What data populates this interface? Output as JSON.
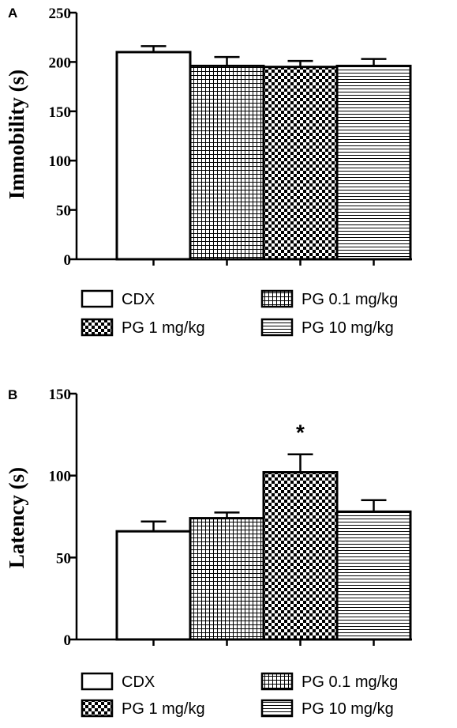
{
  "chart_data": [
    {
      "panel": "A",
      "type": "bar",
      "categories": [
        "CDX",
        "PG 0.1 mg/kg",
        "PG 1 mg/kg",
        "PG 10 mg/kg"
      ],
      "patterns": [
        "none",
        "grid",
        "checker",
        "hlines"
      ],
      "values": [
        210,
        196,
        195,
        196
      ],
      "errors": [
        6,
        9,
        6,
        7
      ],
      "significance": [
        "",
        "",
        "",
        ""
      ],
      "ylabel": "Immobility (s)",
      "ylim": [
        0,
        250
      ],
      "yticks": [
        0,
        50,
        100,
        150,
        200,
        250
      ],
      "legend": [
        "CDX",
        "PG 0.1 mg/kg",
        "PG 1 mg/kg",
        "PG 10 mg/kg"
      ],
      "legend_layout": "two-column, below the plot",
      "grid": false
    },
    {
      "panel": "B",
      "type": "bar",
      "categories": [
        "CDX",
        "PG 0.1 mg/kg",
        "PG 1 mg/kg",
        "PG 10 mg/kg"
      ],
      "patterns": [
        "none",
        "grid",
        "checker",
        "hlines"
      ],
      "values": [
        66,
        74,
        102,
        78
      ],
      "errors": [
        6,
        3.5,
        11,
        7
      ],
      "significance": [
        "",
        "",
        "*",
        ""
      ],
      "ylabel": "Latency (s)",
      "ylim": [
        0,
        150
      ],
      "yticks": [
        0,
        50,
        100,
        150
      ],
      "legend": [
        "CDX",
        "PG 0.1 mg/kg",
        "PG 1 mg/kg",
        "PG 10 mg/kg"
      ],
      "legend_layout": "two-column, below the plot",
      "grid": false
    }
  ]
}
